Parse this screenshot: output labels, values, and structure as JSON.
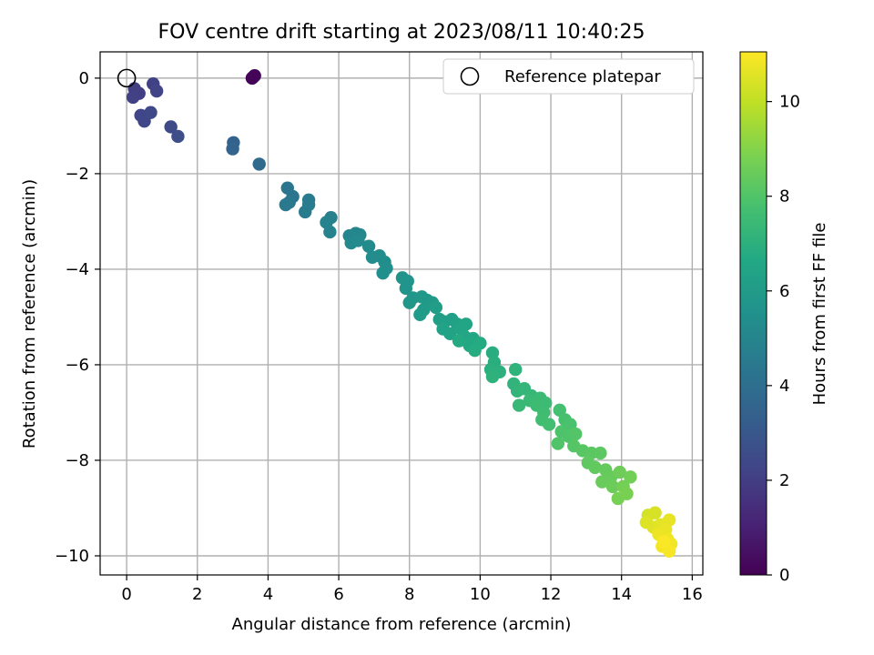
{
  "chart_data": {
    "type": "scatter",
    "title": "FOV centre drift starting at 2023/08/11 10:40:25",
    "xlabel": "Angular distance from reference (arcmin)",
    "ylabel": "Rotation from reference (arcmin)",
    "xlim": [
      -0.75,
      16.3
    ],
    "ylim": [
      -10.4,
      0.55
    ],
    "xticks": [
      0,
      2,
      4,
      6,
      8,
      10,
      12,
      14,
      16
    ],
    "yticks": [
      0,
      -2,
      -4,
      -6,
      -8,
      -10
    ],
    "grid": true,
    "legend": {
      "placement": "top-right",
      "entries": [
        "Reference platepar"
      ]
    },
    "reference_point": {
      "x": 0,
      "y": 0,
      "label": "Reference platepar"
    },
    "colorbar": {
      "label": "Hours from first FF file",
      "range": [
        0,
        11.05
      ],
      "ticks": [
        0,
        2,
        4,
        6,
        8,
        10
      ],
      "colormap": "viridis"
    },
    "points": [
      {
        "x": 3.55,
        "y": 0.0,
        "c": 0.05
      },
      {
        "x": 3.62,
        "y": 0.05,
        "c": 0.1
      },
      {
        "x": 3.58,
        "y": 0.02,
        "c": 0.12
      },
      {
        "x": 0.22,
        "y": -0.22,
        "c": 2.0
      },
      {
        "x": 0.35,
        "y": -0.32,
        "c": 2.05
      },
      {
        "x": 0.18,
        "y": -0.4,
        "c": 2.1
      },
      {
        "x": 0.75,
        "y": -0.12,
        "c": 2.15
      },
      {
        "x": 0.85,
        "y": -0.27,
        "c": 2.2
      },
      {
        "x": 0.4,
        "y": -0.78,
        "c": 2.3
      },
      {
        "x": 0.5,
        "y": -0.9,
        "c": 2.35
      },
      {
        "x": 0.68,
        "y": -0.72,
        "c": 2.4
      },
      {
        "x": 1.25,
        "y": -1.02,
        "c": 2.5
      },
      {
        "x": 1.45,
        "y": -1.22,
        "c": 2.6
      },
      {
        "x": 3.02,
        "y": -1.35,
        "c": 3.5
      },
      {
        "x": 3.0,
        "y": -1.48,
        "c": 3.55
      },
      {
        "x": 3.75,
        "y": -1.8,
        "c": 3.8
      },
      {
        "x": 4.55,
        "y": -2.3,
        "c": 4.3
      },
      {
        "x": 4.7,
        "y": -2.48,
        "c": 4.35
      },
      {
        "x": 4.6,
        "y": -2.6,
        "c": 4.4
      },
      {
        "x": 4.5,
        "y": -2.65,
        "c": 4.45
      },
      {
        "x": 5.15,
        "y": -2.55,
        "c": 4.5
      },
      {
        "x": 5.15,
        "y": -2.65,
        "c": 4.55
      },
      {
        "x": 5.05,
        "y": -2.8,
        "c": 4.6
      },
      {
        "x": 5.78,
        "y": -2.92,
        "c": 4.8
      },
      {
        "x": 5.65,
        "y": -3.02,
        "c": 4.85
      },
      {
        "x": 5.75,
        "y": -3.22,
        "c": 4.9
      },
      {
        "x": 6.3,
        "y": -3.3,
        "c": 5.0
      },
      {
        "x": 6.48,
        "y": -3.25,
        "c": 5.05
      },
      {
        "x": 6.6,
        "y": -3.28,
        "c": 5.1
      },
      {
        "x": 6.35,
        "y": -3.45,
        "c": 5.15
      },
      {
        "x": 6.55,
        "y": -3.4,
        "c": 5.2
      },
      {
        "x": 6.85,
        "y": -3.52,
        "c": 5.25
      },
      {
        "x": 6.95,
        "y": -3.75,
        "c": 5.3
      },
      {
        "x": 7.15,
        "y": -3.72,
        "c": 5.35
      },
      {
        "x": 7.3,
        "y": -3.85,
        "c": 5.4
      },
      {
        "x": 7.35,
        "y": -3.98,
        "c": 5.45
      },
      {
        "x": 7.25,
        "y": -4.08,
        "c": 5.5
      },
      {
        "x": 7.8,
        "y": -4.18,
        "c": 5.6
      },
      {
        "x": 7.95,
        "y": -4.25,
        "c": 5.65
      },
      {
        "x": 7.9,
        "y": -4.4,
        "c": 5.7
      },
      {
        "x": 8.1,
        "y": -4.6,
        "c": 5.75
      },
      {
        "x": 8.0,
        "y": -4.7,
        "c": 5.8
      },
      {
        "x": 8.35,
        "y": -4.58,
        "c": 5.85
      },
      {
        "x": 8.5,
        "y": -4.65,
        "c": 5.9
      },
      {
        "x": 8.65,
        "y": -4.7,
        "c": 5.95
      },
      {
        "x": 8.4,
        "y": -4.85,
        "c": 6.0
      },
      {
        "x": 8.3,
        "y": -4.95,
        "c": 6.05
      },
      {
        "x": 8.75,
        "y": -4.8,
        "c": 6.1
      },
      {
        "x": 8.85,
        "y": -5.05,
        "c": 6.15
      },
      {
        "x": 9.0,
        "y": -5.1,
        "c": 6.2
      },
      {
        "x": 9.2,
        "y": -5.05,
        "c": 6.25
      },
      {
        "x": 9.35,
        "y": -5.15,
        "c": 6.3
      },
      {
        "x": 8.95,
        "y": -5.25,
        "c": 6.35
      },
      {
        "x": 9.15,
        "y": -5.35,
        "c": 6.4
      },
      {
        "x": 9.45,
        "y": -5.25,
        "c": 6.45
      },
      {
        "x": 9.6,
        "y": -5.15,
        "c": 6.5
      },
      {
        "x": 9.55,
        "y": -5.4,
        "c": 6.55
      },
      {
        "x": 9.8,
        "y": -5.45,
        "c": 6.6
      },
      {
        "x": 9.7,
        "y": -5.6,
        "c": 6.65
      },
      {
        "x": 9.4,
        "y": -5.5,
        "c": 6.7
      },
      {
        "x": 10.0,
        "y": -5.55,
        "c": 6.75
      },
      {
        "x": 9.85,
        "y": -5.7,
        "c": 6.8
      },
      {
        "x": 10.35,
        "y": -5.75,
        "c": 6.85
      },
      {
        "x": 10.4,
        "y": -5.95,
        "c": 6.9
      },
      {
        "x": 10.3,
        "y": -6.1,
        "c": 6.95
      },
      {
        "x": 10.55,
        "y": -6.15,
        "c": 7.0
      },
      {
        "x": 10.35,
        "y": -6.25,
        "c": 7.05
      },
      {
        "x": 11.0,
        "y": -6.1,
        "c": 7.1
      },
      {
        "x": 10.95,
        "y": -6.4,
        "c": 7.15
      },
      {
        "x": 11.05,
        "y": -6.55,
        "c": 7.2
      },
      {
        "x": 11.25,
        "y": -6.5,
        "c": 7.25
      },
      {
        "x": 11.45,
        "y": -6.65,
        "c": 7.3
      },
      {
        "x": 11.1,
        "y": -6.85,
        "c": 7.35
      },
      {
        "x": 11.4,
        "y": -6.75,
        "c": 7.4
      },
      {
        "x": 11.7,
        "y": -6.7,
        "c": 7.45
      },
      {
        "x": 11.85,
        "y": -6.8,
        "c": 7.5
      },
      {
        "x": 11.6,
        "y": -6.85,
        "c": 7.55
      },
      {
        "x": 11.8,
        "y": -7.0,
        "c": 7.6
      },
      {
        "x": 11.75,
        "y": -7.15,
        "c": 7.65
      },
      {
        "x": 11.95,
        "y": -7.25,
        "c": 7.7
      },
      {
        "x": 12.25,
        "y": -6.95,
        "c": 7.75
      },
      {
        "x": 12.4,
        "y": -7.15,
        "c": 7.8
      },
      {
        "x": 12.55,
        "y": -7.25,
        "c": 7.85
      },
      {
        "x": 12.3,
        "y": -7.4,
        "c": 7.9
      },
      {
        "x": 12.5,
        "y": -7.5,
        "c": 7.95
      },
      {
        "x": 12.2,
        "y": -7.65,
        "c": 8.0
      },
      {
        "x": 12.7,
        "y": -7.45,
        "c": 8.05
      },
      {
        "x": 12.65,
        "y": -7.7,
        "c": 8.1
      },
      {
        "x": 12.9,
        "y": -7.8,
        "c": 8.15
      },
      {
        "x": 13.15,
        "y": -7.85,
        "c": 8.2
      },
      {
        "x": 13.4,
        "y": -7.85,
        "c": 8.25
      },
      {
        "x": 13.05,
        "y": -8.05,
        "c": 8.3
      },
      {
        "x": 13.25,
        "y": -8.15,
        "c": 8.35
      },
      {
        "x": 13.55,
        "y": -8.2,
        "c": 8.4
      },
      {
        "x": 13.7,
        "y": -8.35,
        "c": 8.45
      },
      {
        "x": 13.45,
        "y": -8.45,
        "c": 8.5
      },
      {
        "x": 13.75,
        "y": -8.55,
        "c": 8.55
      },
      {
        "x": 13.95,
        "y": -8.25,
        "c": 8.6
      },
      {
        "x": 14.25,
        "y": -8.35,
        "c": 8.65
      },
      {
        "x": 14.05,
        "y": -8.55,
        "c": 8.7
      },
      {
        "x": 13.9,
        "y": -8.8,
        "c": 8.75
      },
      {
        "x": 14.15,
        "y": -8.7,
        "c": 8.8
      },
      {
        "x": 14.75,
        "y": -9.15,
        "c": 10.3
      },
      {
        "x": 14.95,
        "y": -9.1,
        "c": 10.4
      },
      {
        "x": 14.7,
        "y": -9.3,
        "c": 10.5
      },
      {
        "x": 14.9,
        "y": -9.4,
        "c": 10.55
      },
      {
        "x": 15.1,
        "y": -9.35,
        "c": 10.6
      },
      {
        "x": 15.35,
        "y": -9.25,
        "c": 10.65
      },
      {
        "x": 15.25,
        "y": -9.45,
        "c": 10.7
      },
      {
        "x": 15.05,
        "y": -9.55,
        "c": 10.75
      },
      {
        "x": 15.3,
        "y": -9.65,
        "c": 10.8
      },
      {
        "x": 15.4,
        "y": -9.75,
        "c": 10.85
      },
      {
        "x": 15.15,
        "y": -9.8,
        "c": 10.9
      },
      {
        "x": 15.35,
        "y": -9.9,
        "c": 10.95
      },
      {
        "x": 15.2,
        "y": -9.7,
        "c": 11.0
      }
    ]
  }
}
